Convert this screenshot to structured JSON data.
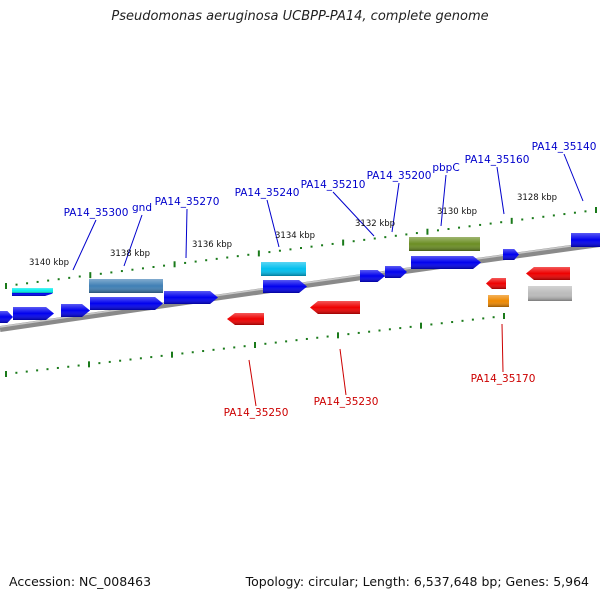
{
  "title": "Pseudomonas aeruginosa UCBPP-PA14, complete genome",
  "footer": {
    "accession": "Accession: NC_008463",
    "topology": "Topology: circular; Length: 6,537,648 bp; Genes: 5,964"
  },
  "colors": {
    "backbone": "#8a8a8a",
    "plus_label": "#0000cc",
    "minus_label": "#cc0000",
    "tick": "#1a7a1a",
    "scale_text": "#111111"
  },
  "scale_labels": [
    "3140 kbp",
    "3138 kbp",
    "3136 kbp",
    "3134 kbp",
    "3132 kbp",
    "3130 kbp",
    "3128 kbp"
  ],
  "plus_labels": [
    "PA14_35300",
    "gnd",
    "PA14_35270",
    "PA14_35240",
    "PA14_35210",
    "PA14_35200",
    "pbpC",
    "PA14_35160",
    "PA14_35140"
  ],
  "minus_labels": [
    "PA14_35250",
    "PA14_35230",
    "PA14_35170"
  ],
  "features": [
    {
      "color": "#0000ee",
      "strand": "+"
    },
    {
      "color": "#0000ee",
      "strand": "+"
    },
    {
      "color": "#0000ee",
      "strand": "+"
    },
    {
      "color": "#0000ee",
      "strand": "+"
    },
    {
      "color": "#0000ee",
      "strand": "+"
    },
    {
      "color": "#0000ee",
      "strand": "+"
    },
    {
      "color": "#0000ee",
      "strand": "+"
    },
    {
      "color": "#0000ee",
      "strand": "+"
    },
    {
      "color": "#0000ee",
      "strand": "+"
    },
    {
      "color": "#0000ee",
      "strand": "+"
    },
    {
      "color": "#0000ee",
      "strand": "+"
    },
    {
      "color": "#0000ee",
      "strand": "+"
    },
    {
      "color": "#3f7fb5",
      "strand": "+"
    },
    {
      "color": "#00bfee",
      "strand": "+"
    },
    {
      "color": "#6b8e23",
      "strand": "+"
    },
    {
      "color": "#00eeee",
      "strand": "+"
    },
    {
      "color": "#ee0000",
      "strand": "-"
    },
    {
      "color": "#ee0000",
      "strand": "-"
    },
    {
      "color": "#ee0000",
      "strand": "-"
    },
    {
      "color": "#ee0000",
      "strand": "-"
    },
    {
      "color": "#ee8800",
      "strand": "-"
    },
    {
      "color": "#bbbbbb",
      "strand": "-"
    }
  ]
}
